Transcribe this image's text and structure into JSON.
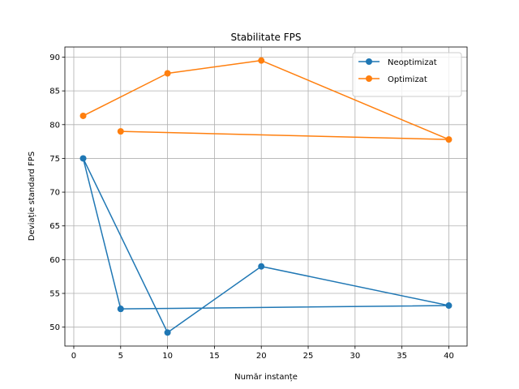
{
  "chart_data": {
    "type": "line",
    "title": "Stabilitate FPS",
    "xlabel": "Număr instanțe",
    "ylabel": "Deviație standard FPS",
    "xlim": [
      -0.95,
      41.95
    ],
    "ylim": [
      47.2,
      91.5
    ],
    "xticks": [
      0,
      5,
      10,
      15,
      20,
      25,
      30,
      35,
      40
    ],
    "yticks": [
      50,
      55,
      60,
      65,
      70,
      75,
      80,
      85,
      90
    ],
    "grid": true,
    "legend_position": "top-right",
    "series": [
      {
        "name": "Neoptimizat",
        "color": "#1f77b4",
        "marker": "circle",
        "points": [
          [
            5,
            52.7
          ],
          [
            1,
            75.0
          ],
          [
            10,
            49.2
          ],
          [
            20,
            59.0
          ],
          [
            40,
            53.2
          ],
          [
            5,
            52.7
          ]
        ]
      },
      {
        "name": "Optimizat",
        "color": "#ff7f0e",
        "marker": "circle",
        "points": [
          [
            5,
            79.0
          ],
          [
            40,
            77.8
          ],
          [
            20,
            89.5
          ],
          [
            10,
            87.6
          ],
          [
            1,
            81.3
          ]
        ]
      }
    ]
  }
}
